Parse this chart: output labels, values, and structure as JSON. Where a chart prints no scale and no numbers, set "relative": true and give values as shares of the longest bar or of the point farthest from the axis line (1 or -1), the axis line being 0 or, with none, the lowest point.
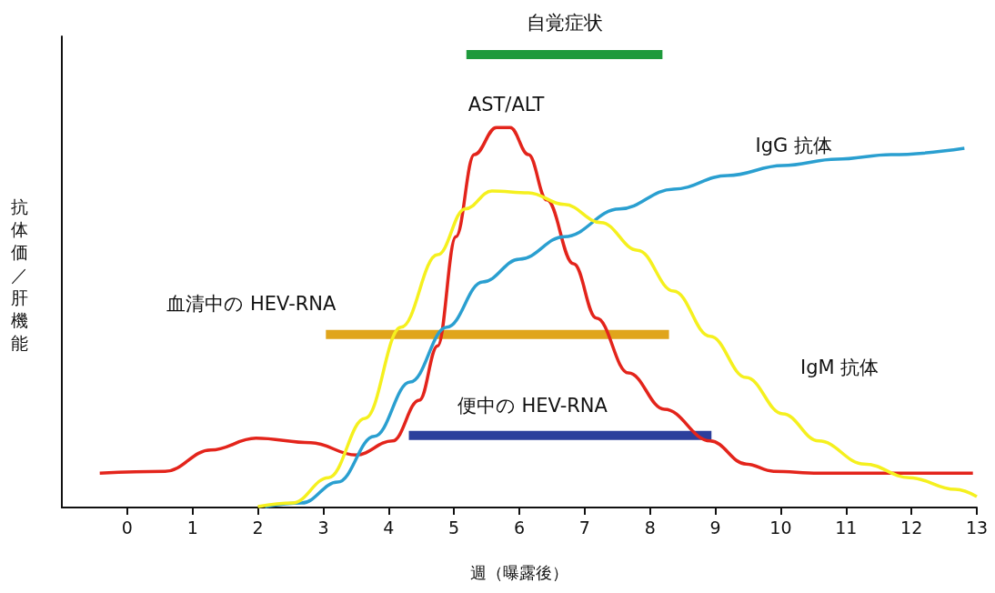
{
  "chart_data": {
    "type": "line",
    "relative": true,
    "xlabel": "週（曝露後）",
    "ylabel": "抗体価／肝機能",
    "xlim": [
      -1,
      13
    ],
    "xticks": [
      0,
      1,
      2,
      3,
      4,
      5,
      6,
      7,
      8,
      9,
      10,
      11,
      12,
      13
    ],
    "grid": false,
    "legend": false,
    "marker": "none",
    "line_style": "solid",
    "series": [
      {
        "name": "AST/ALT",
        "color": "#e3241b",
        "x": [
          -0.42,
          0.58,
          1.28,
          1.97,
          2.81,
          3.5,
          4.06,
          4.47,
          4.75,
          5.03,
          5.31,
          5.65,
          5.86,
          6.14,
          6.42,
          6.83,
          7.18,
          7.67,
          8.22,
          8.92,
          9.47,
          9.89,
          10.58,
          12.94
        ],
        "values": [
          0.076,
          0.08,
          0.127,
          0.153,
          0.143,
          0.116,
          0.147,
          0.237,
          0.357,
          0.598,
          0.779,
          0.839,
          0.839,
          0.779,
          0.679,
          0.538,
          0.418,
          0.297,
          0.217,
          0.147,
          0.096,
          0.08,
          0.076,
          0.076
        ]
      },
      {
        "name": "IgG 抗体",
        "color": "#2a9fd0",
        "x": [
          2.11,
          2.67,
          3.22,
          3.78,
          4.33,
          4.89,
          5.44,
          6.0,
          6.69,
          7.53,
          8.36,
          9.19,
          10.03,
          10.86,
          11.69,
          12.81
        ],
        "values": [
          0.002,
          0.01,
          0.056,
          0.157,
          0.277,
          0.398,
          0.498,
          0.548,
          0.598,
          0.659,
          0.703,
          0.733,
          0.755,
          0.769,
          0.779,
          0.793
        ]
      },
      {
        "name": "IgM 抗体",
        "color": "#f5f01e",
        "x": [
          2.0,
          2.53,
          3.08,
          3.64,
          4.19,
          4.75,
          5.17,
          5.58,
          6.14,
          6.69,
          7.25,
          7.81,
          8.36,
          8.92,
          9.47,
          10.03,
          10.58,
          11.28,
          11.97,
          12.67,
          13.0
        ],
        "values": [
          0.002,
          0.01,
          0.066,
          0.197,
          0.398,
          0.558,
          0.659,
          0.699,
          0.695,
          0.669,
          0.629,
          0.568,
          0.478,
          0.378,
          0.287,
          0.207,
          0.147,
          0.096,
          0.066,
          0.04,
          0.024
        ]
      },
      {
        "name": "自覚症状",
        "color": "#1e9a3c",
        "x": [
          5.19,
          8.19
        ],
        "values": [
          1.0,
          1.0
        ]
      },
      {
        "name": "血清中の HEV-RNA",
        "color": "#e0a51c",
        "x": [
          3.04,
          8.29
        ],
        "values": [
          0.382,
          0.382
        ]
      },
      {
        "name": "便中の HEV-RNA",
        "color": "#2c3f9c",
        "x": [
          4.31,
          8.94
        ],
        "values": [
          0.159,
          0.159
        ]
      }
    ]
  }
}
